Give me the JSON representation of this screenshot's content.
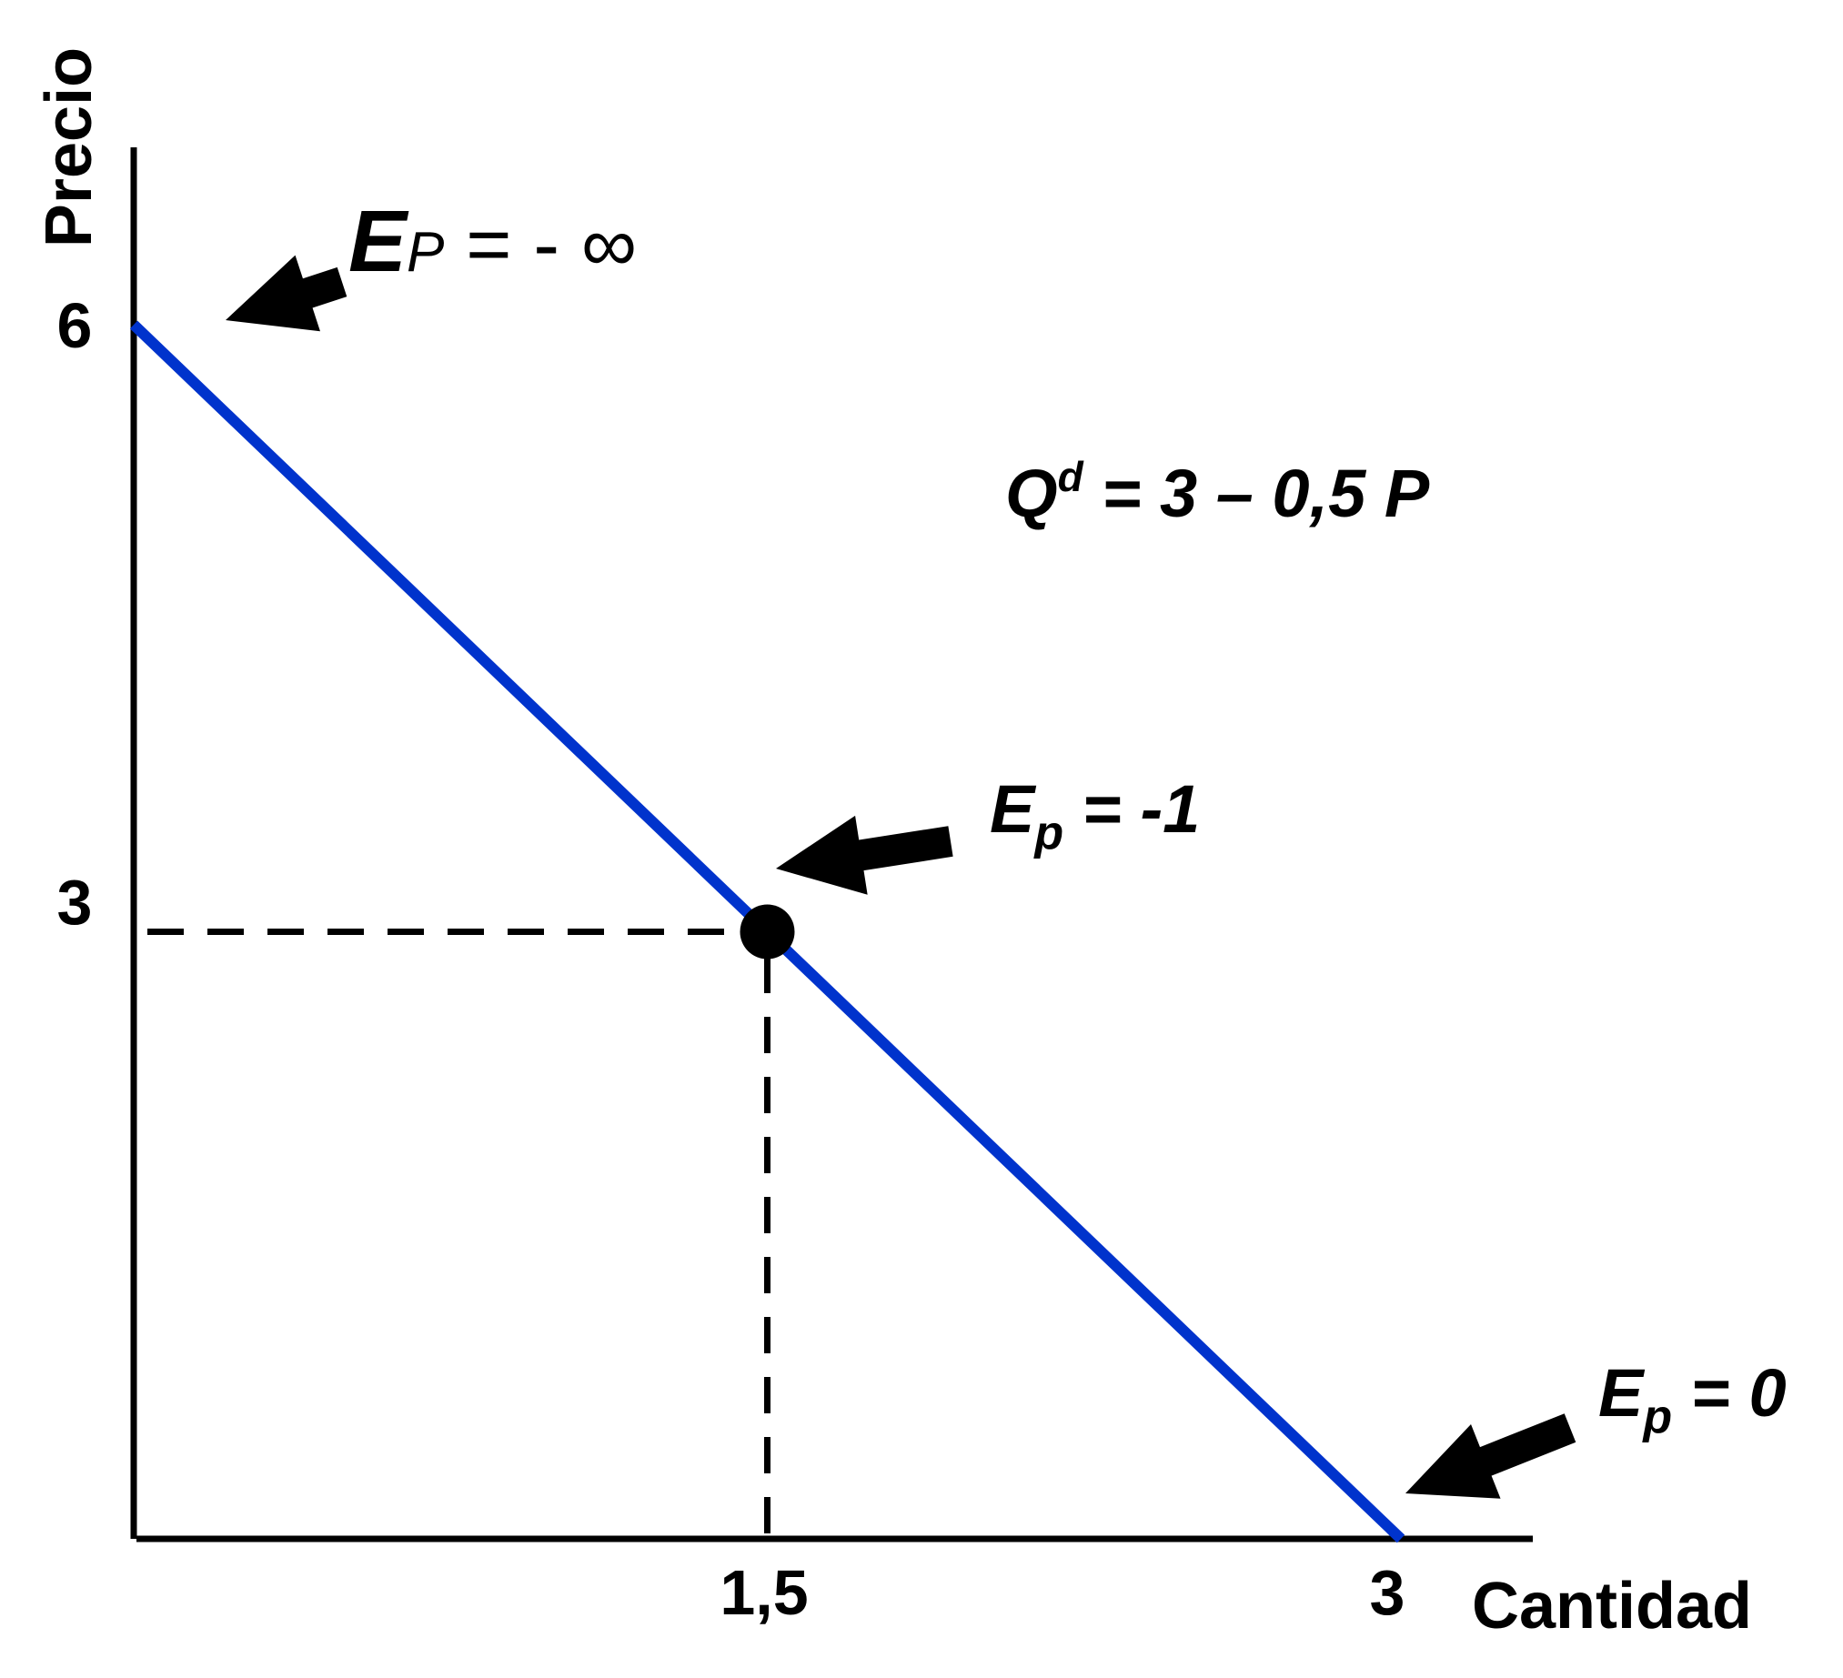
{
  "chart_data": {
    "type": "line",
    "title": "",
    "xlabel": "Cantidad",
    "ylabel": "Precio",
    "xlim": [
      0,
      3.3
    ],
    "ylim": [
      0,
      6.3
    ],
    "x_ticks": [
      "1,5",
      "3"
    ],
    "y_ticks": [
      "6",
      "3"
    ],
    "grid": false,
    "series": [
      {
        "x": [
          0,
          3
        ],
        "y": [
          6,
          0
        ],
        "color": "#0033cc"
      }
    ],
    "highlight_point": {
      "x": 1.5,
      "y": 3
    },
    "equation": {
      "base": "Q",
      "sup": "d",
      "rest": " = 3 – 0,5 P"
    },
    "annotations": [
      {
        "base": "E",
        "sub": "P",
        "rest": " = - ∞",
        "points_to": {
          "x": 0,
          "y": 6
        }
      },
      {
        "base": "E",
        "sub": "p",
        "rest": " = -1",
        "points_to": {
          "x": 1.5,
          "y": 3
        }
      },
      {
        "base": "E",
        "sub": "p",
        "rest": " = 0",
        "points_to": {
          "x": 3,
          "y": 0
        }
      }
    ]
  }
}
